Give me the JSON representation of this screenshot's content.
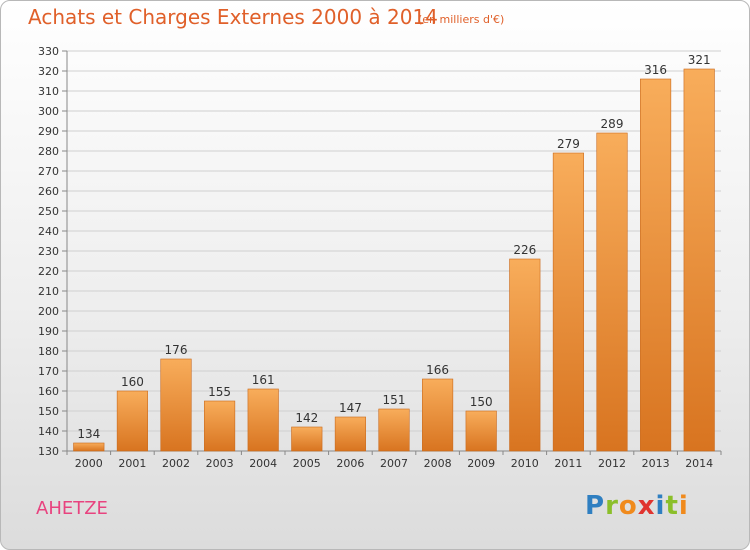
{
  "title": "Achats et Charges Externes 2000 à 2014",
  "subtitle": "(en milliers d'€)",
  "location": "AHETZE",
  "logo": {
    "text": "Proxiti",
    "letters": [
      "P",
      "r",
      "o",
      "x",
      "i",
      "t",
      "i"
    ],
    "colors": [
      "#2f7fc1",
      "#8bbf2a",
      "#f08a1c",
      "#e0342f",
      "#2f7fc1",
      "#8bbf2a",
      "#f08a1c"
    ]
  },
  "colors": {
    "bar_light": "#f8ad5b",
    "bar_dark": "#d87420",
    "title": "#e0602a",
    "location": "#e8437f"
  },
  "chart_data": {
    "type": "bar",
    "title": "Achats et Charges Externes 2000 à 2014",
    "subtitle": "(en milliers d'€)",
    "categories": [
      "2000",
      "2001",
      "2002",
      "2003",
      "2004",
      "2005",
      "2006",
      "2007",
      "2008",
      "2009",
      "2010",
      "2011",
      "2012",
      "2013",
      "2014"
    ],
    "values": [
      134,
      160,
      176,
      155,
      161,
      142,
      147,
      151,
      166,
      150,
      226,
      279,
      289,
      316,
      321
    ],
    "ylim": [
      130,
      330
    ],
    "yticks": [
      130,
      140,
      150,
      160,
      170,
      180,
      190,
      200,
      210,
      220,
      230,
      240,
      250,
      260,
      270,
      280,
      290,
      300,
      310,
      320,
      330
    ],
    "grid": true,
    "data_labels": true
  }
}
